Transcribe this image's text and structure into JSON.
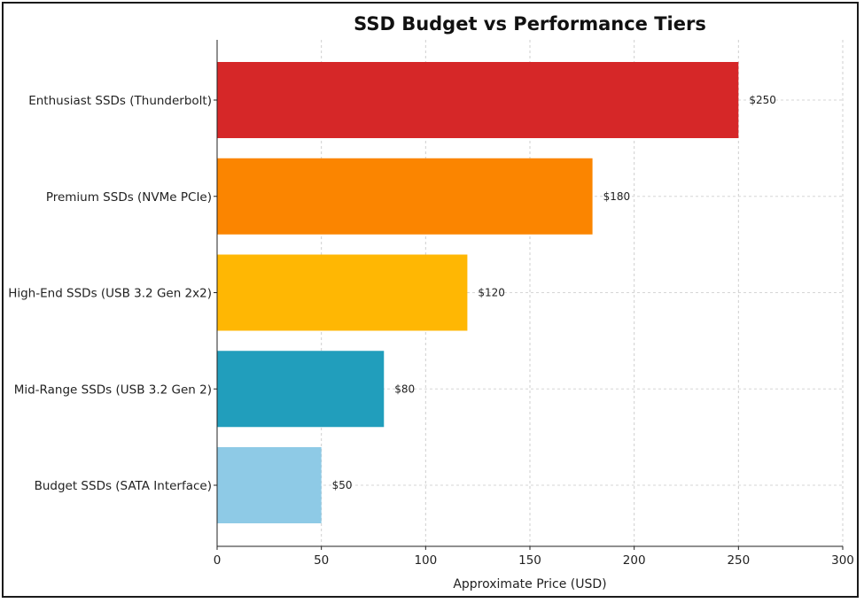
{
  "chart_data": {
    "type": "bar",
    "orientation": "horizontal",
    "title": "SSD Budget vs Performance Tiers",
    "xlabel": "Approximate Price (USD)",
    "ylabel": "",
    "xlim": [
      0,
      300
    ],
    "xticks": [
      0,
      50,
      100,
      150,
      200,
      250,
      300
    ],
    "grid": true,
    "categories": [
      "Enthusiast SSDs (Thunderbolt)",
      "Premium SSDs (NVMe PCIe)",
      "High-End SSDs (USB 3.2 Gen 2x2)",
      "Mid-Range SSDs (USB 3.2 Gen 2)",
      "Budget SSDs (SATA Interface)"
    ],
    "values": [
      250,
      180,
      120,
      80,
      50
    ],
    "value_labels": [
      "$250",
      "$180",
      "$120",
      "$80",
      "$50"
    ],
    "colors": [
      "#d62728",
      "#fb8500",
      "#ffb703",
      "#219ebc",
      "#8ecae6"
    ]
  }
}
